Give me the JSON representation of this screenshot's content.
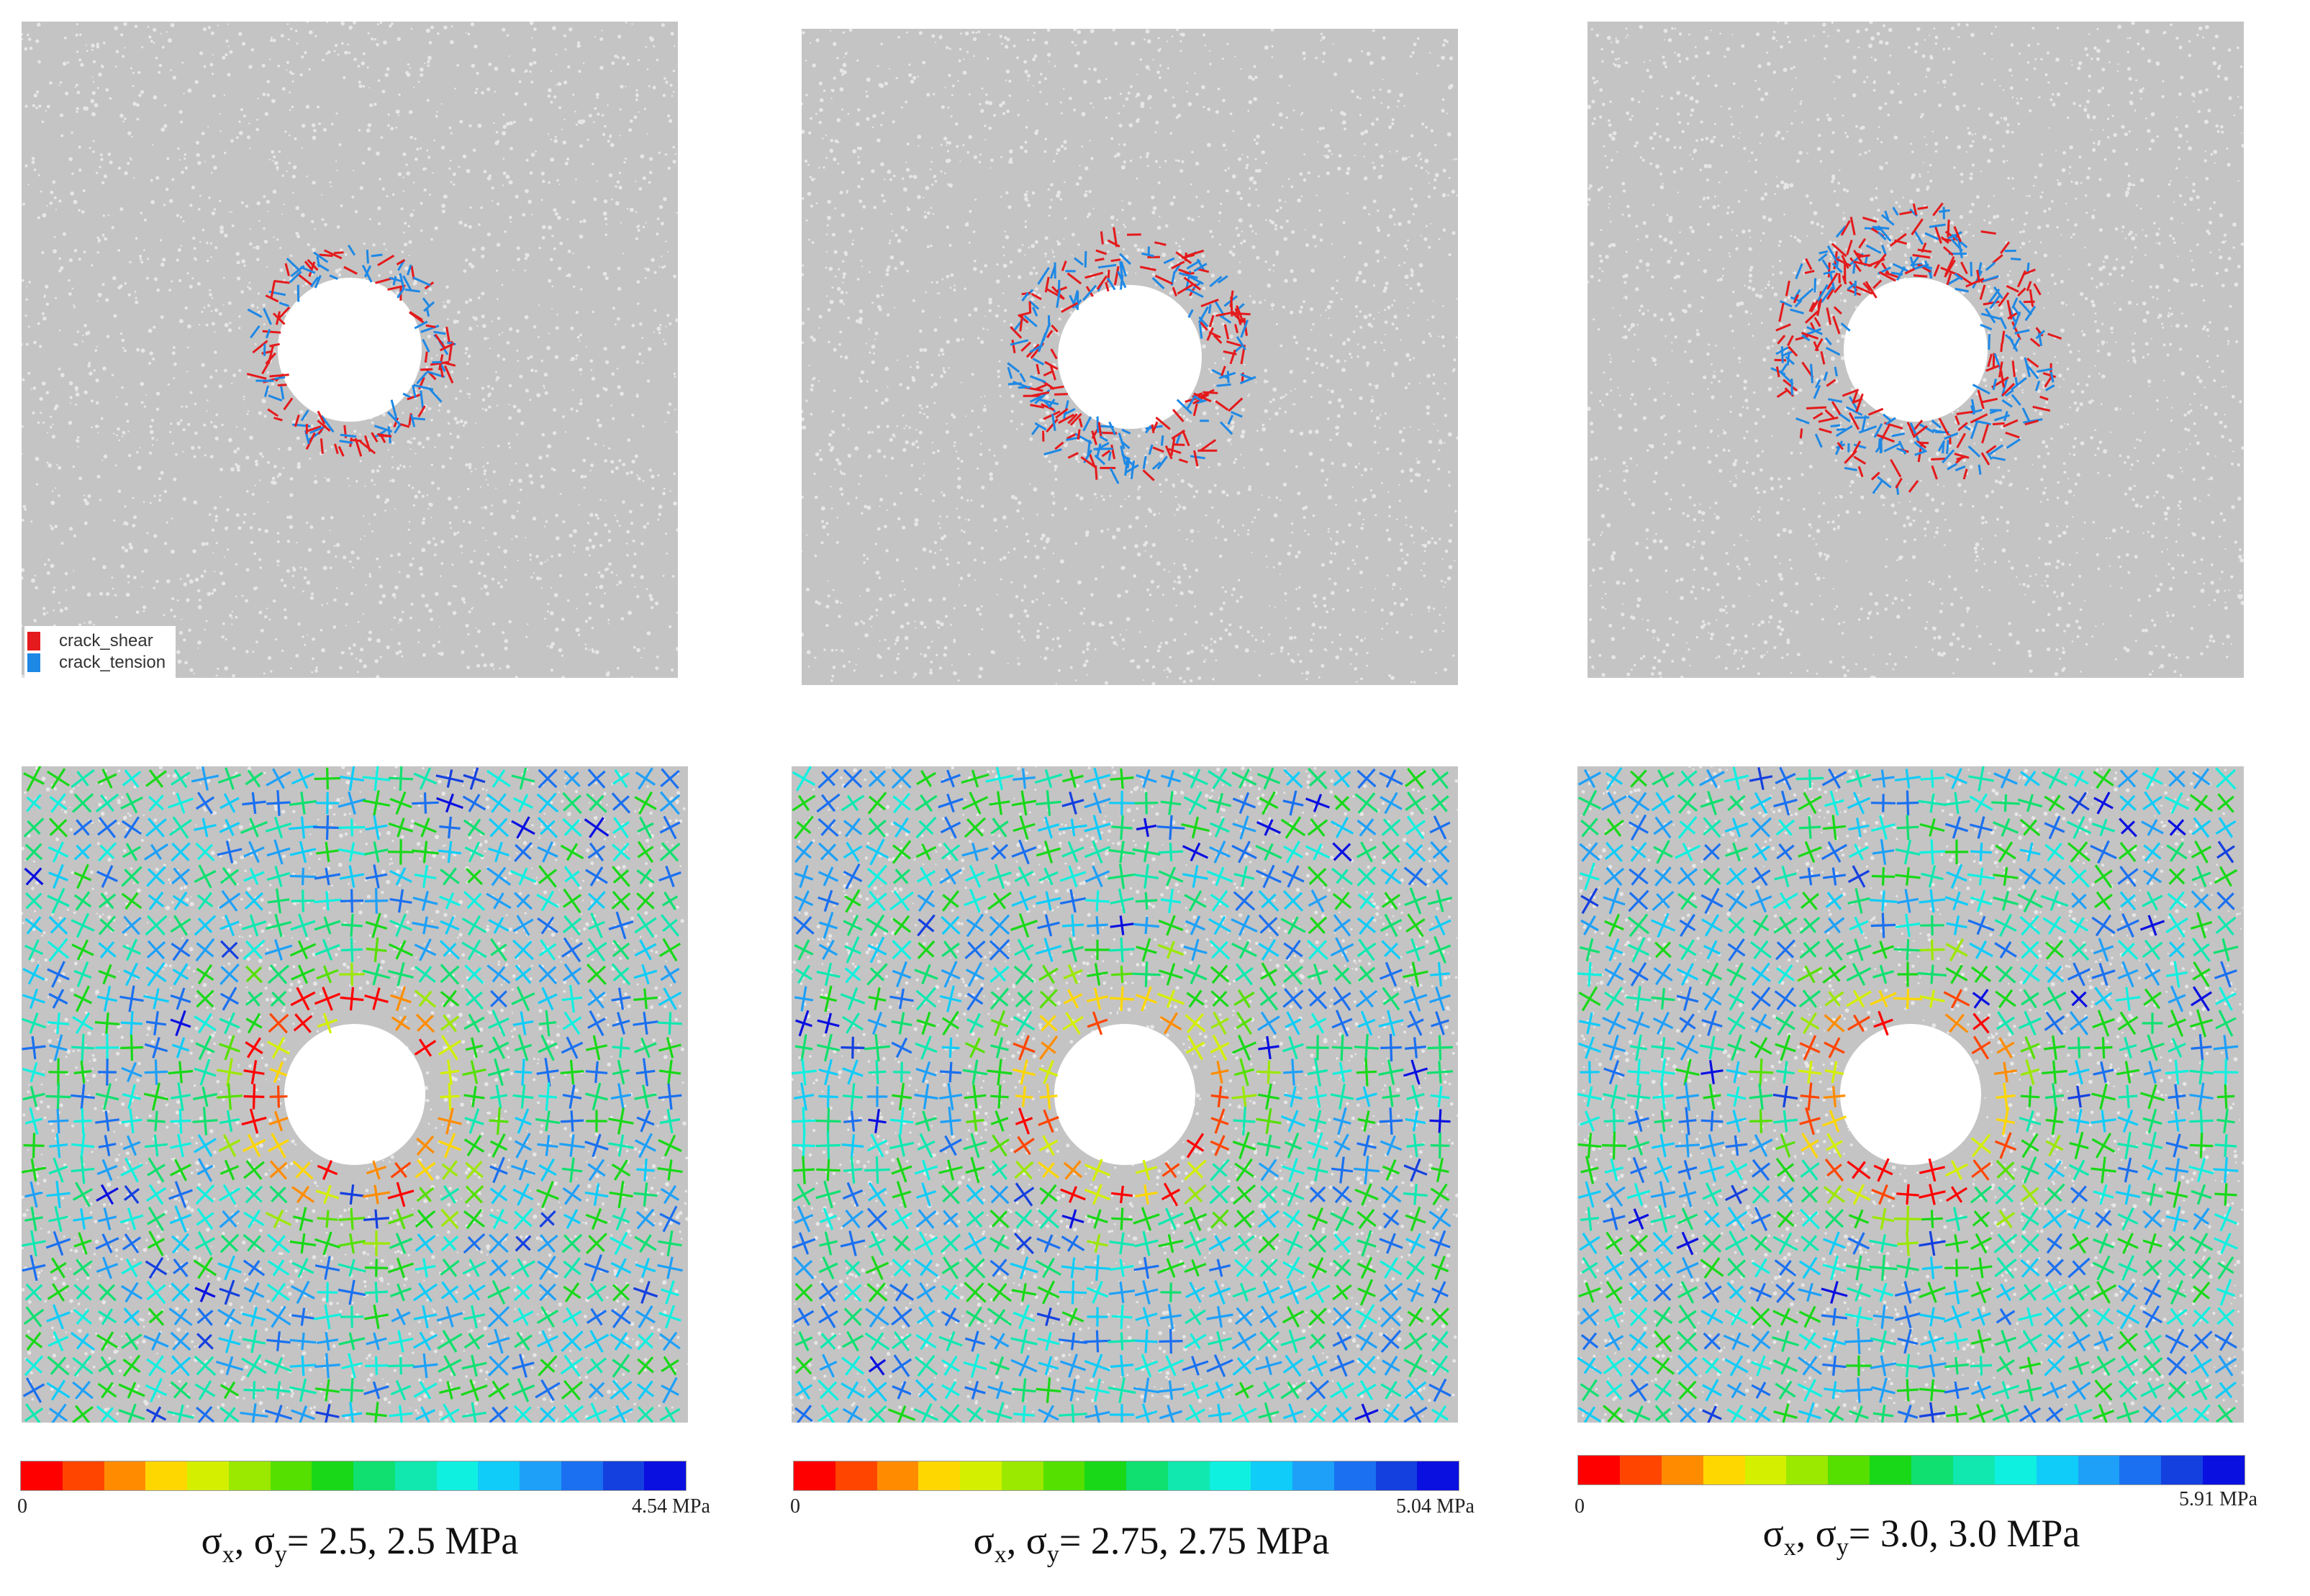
{
  "legend": {
    "shear_label": "crack_shear",
    "tension_label": "crack_tension",
    "shear_color": "#e41a1c",
    "tension_color": "#1e88e5"
  },
  "colormap": [
    "#ff0000",
    "#ff4500",
    "#ff8c00",
    "#ffd700",
    "#d4f000",
    "#9be800",
    "#55e000",
    "#18d818",
    "#10e070",
    "#10e8b0",
    "#10f0e0",
    "#10ccf8",
    "#1ea0f8",
    "#1a70f0",
    "#1440e0",
    "#0a10e0"
  ],
  "panels": [
    {
      "caption": {
        "s1": "σ",
        "sub1": "x",
        "mid": ", σ",
        "sub2": "y",
        "rest": "= 2.5, 2.5 MPa"
      },
      "colorbar": {
        "min_label": "0",
        "max_label": "4.54 MPa"
      },
      "crack_intensity": 1
    },
    {
      "caption": {
        "s1": "σ",
        "sub1": "x",
        "mid": ", σ",
        "sub2": "y",
        "rest": "= 2.75, 2.75 MPa"
      },
      "colorbar": {
        "min_label": "0",
        "max_label": "5.04 MPa"
      },
      "crack_intensity": 2
    },
    {
      "caption": {
        "s1": "σ",
        "sub1": "x",
        "mid": ", σ",
        "sub2": "y",
        "rest": "= 3.0, 3.0 MPa"
      },
      "colorbar": {
        "min_label": "0",
        "max_label": "5.91 MPa"
      },
      "crack_intensity": 3
    }
  ]
}
